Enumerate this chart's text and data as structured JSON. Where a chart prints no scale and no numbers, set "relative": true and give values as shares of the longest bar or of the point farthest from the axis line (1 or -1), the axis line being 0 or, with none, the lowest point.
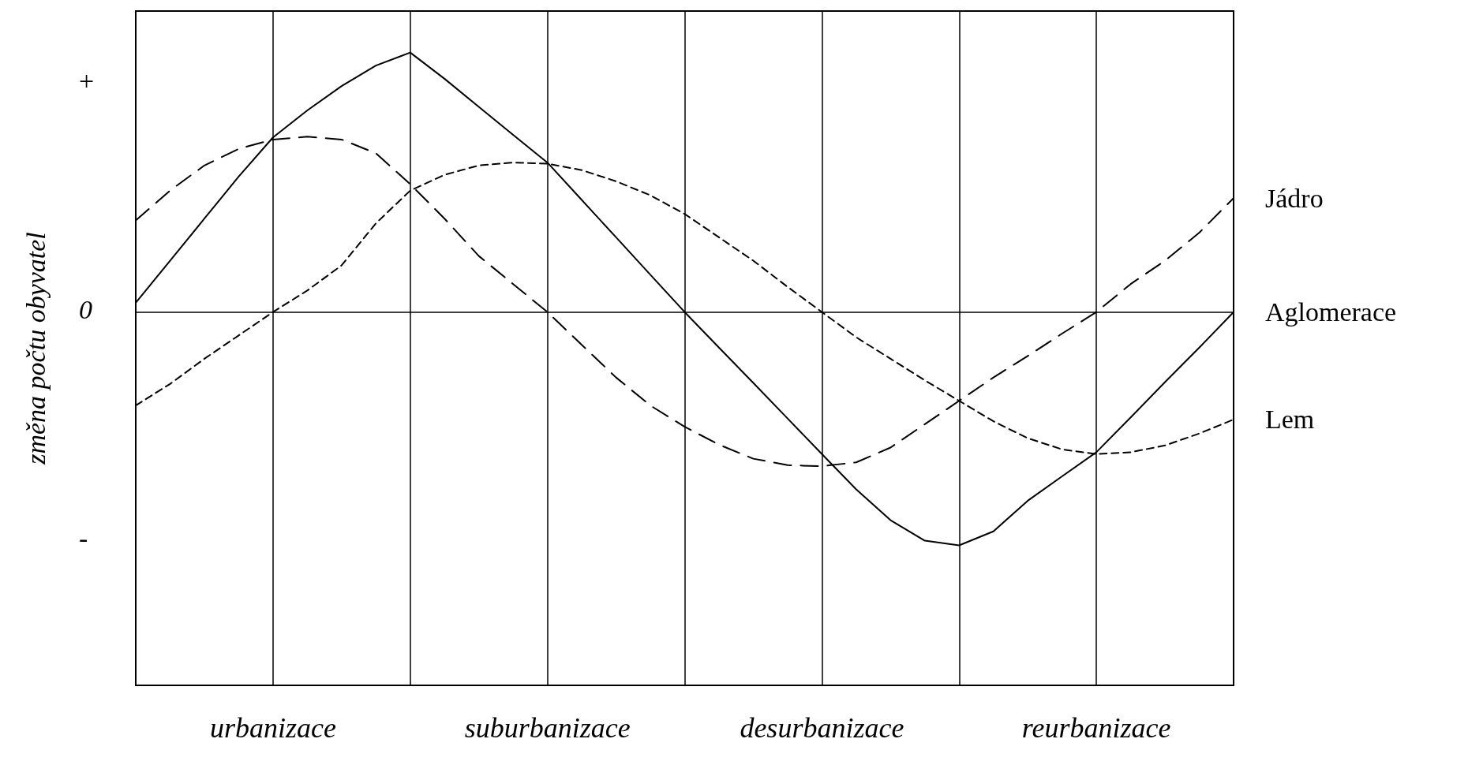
{
  "chart_data": {
    "type": "line",
    "relative": true,
    "ylabel": "změna počtu obyvatel",
    "categories": [
      null,
      null,
      null,
      null,
      "urbanizace",
      null,
      null,
      null,
      null,
      null,
      null,
      null,
      "suburbanizace",
      null,
      null,
      null,
      null,
      null,
      null,
      null,
      "desurbanizace",
      null,
      null,
      null,
      null,
      null,
      null,
      null,
      "reurbanizace",
      null,
      null,
      null,
      null
    ],
    "annotations": [
      "+",
      "0",
      "-"
    ],
    "grid": "x",
    "legend": false,
    "marker": "none",
    "series": [
      {
        "name": "Jádro",
        "color": "#000000",
        "line_style": "dashed",
        "values": [
          0.353,
          0.468,
          0.565,
          0.629,
          0.665,
          0.676,
          0.665,
          0.612,
          0.493,
          0.36,
          0.216,
          0.108,
          0,
          -0.126,
          -0.252,
          -0.36,
          -0.442,
          -0.511,
          -0.565,
          -0.59,
          -0.594,
          -0.579,
          -0.522,
          -0.432,
          -0.342,
          -0.252,
          -0.169,
          -0.083,
          0,
          0.108,
          0.198,
          0.306,
          0.439
        ]
      },
      {
        "name": "Aglomerace",
        "color": "#000000",
        "line_style": "solid",
        "values": [
          0.036,
          0.198,
          0.36,
          0.522,
          0.673,
          0.777,
          0.871,
          0.95,
          1,
          0.899,
          0.791,
          0.683,
          0.576,
          0.432,
          0.288,
          0.144,
          0,
          -0.137,
          -0.273,
          -0.41,
          -0.547,
          -0.683,
          -0.802,
          -0.881,
          -0.899,
          -0.845,
          -0.727,
          -0.633,
          -0.54,
          -0.406,
          -0.27,
          -0.137,
          0
        ]
      },
      {
        "name": "Lem",
        "color": "#000000",
        "line_style": "dotted",
        "values": [
          -0.36,
          -0.277,
          -0.18,
          -0.09,
          0,
          0.083,
          0.18,
          0.342,
          0.468,
          0.529,
          0.565,
          0.576,
          0.572,
          0.547,
          0.504,
          0.45,
          0.378,
          0.288,
          0.198,
          0.097,
          0,
          -0.097,
          -0.18,
          -0.263,
          -0.342,
          -0.421,
          -0.486,
          -0.529,
          -0.547,
          -0.54,
          -0.514,
          -0.468,
          -0.414
        ]
      }
    ]
  }
}
